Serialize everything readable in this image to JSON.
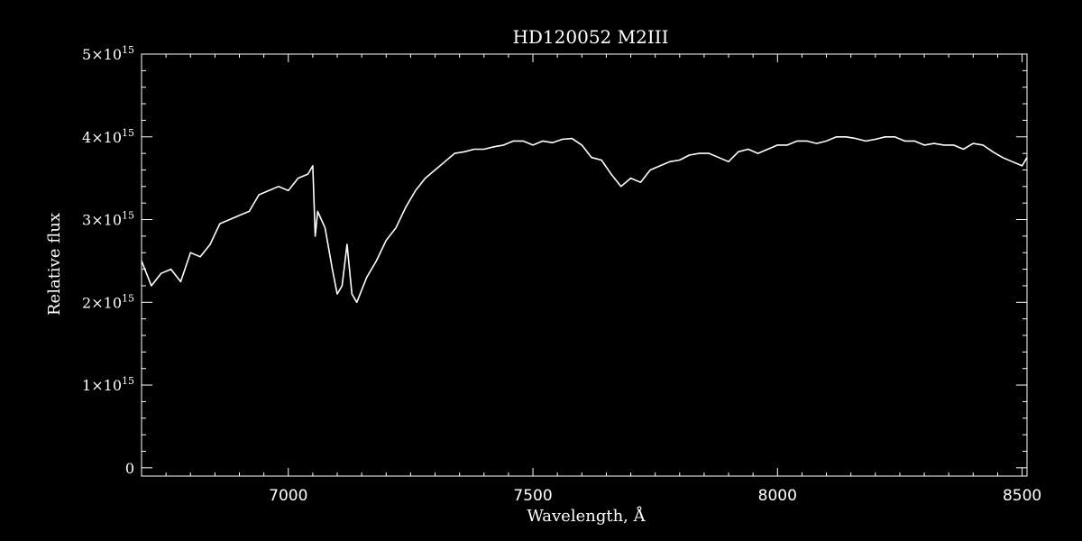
{
  "chart_data": {
    "type": "line",
    "title": "HD120052   M2III",
    "xlabel": "Wavelength, Å",
    "ylabel": "Relative flux",
    "xlim": [
      6700,
      8510
    ],
    "ylim": [
      -100000000000000.0,
      5000000000000000.0
    ],
    "xticks": [
      7000,
      7500,
      8000,
      8500
    ],
    "xtick_labels": [
      "7000",
      "7500",
      "8000",
      "8500"
    ],
    "yticks": [
      0,
      1000000000000000.0,
      2000000000000000.0,
      3000000000000000.0,
      4000000000000000.0,
      5000000000000000.0
    ],
    "ytick_labels": [
      {
        "mantissa": "0",
        "exponent": ""
      },
      {
        "mantissa": "1×10",
        "exponent": "15"
      },
      {
        "mantissa": "2×10",
        "exponent": "15"
      },
      {
        "mantissa": "3×10",
        "exponent": "15"
      },
      {
        "mantissa": "4×10",
        "exponent": "15"
      },
      {
        "mantissa": "5×10",
        "exponent": "15"
      }
    ],
    "grid": false,
    "colors": {
      "background": "#000000",
      "foreground": "#ffffff"
    },
    "series": [
      {
        "x": [
          6700,
          6720,
          6740,
          6760,
          6780,
          6800,
          6820,
          6840,
          6860,
          6880,
          6900,
          6920,
          6940,
          6960,
          6980,
          7000,
          7020,
          7040,
          7050,
          7055,
          7060,
          7075,
          7090,
          7100,
          7110,
          7120,
          7130,
          7140,
          7160,
          7180,
          7200,
          7220,
          7240,
          7260,
          7280,
          7300,
          7320,
          7340,
          7360,
          7380,
          7400,
          7420,
          7440,
          7460,
          7480,
          7500,
          7520,
          7540,
          7560,
          7580,
          7600,
          7620,
          7640,
          7660,
          7680,
          7700,
          7720,
          7740,
          7760,
          7780,
          7800,
          7820,
          7840,
          7860,
          7880,
          7900,
          7920,
          7940,
          7960,
          7980,
          8000,
          8020,
          8040,
          8060,
          8080,
          8100,
          8120,
          8140,
          8160,
          8180,
          8200,
          8220,
          8240,
          8260,
          8280,
          8300,
          8320,
          8340,
          8360,
          8380,
          8400,
          8420,
          8440,
          8460,
          8480,
          8500,
          8510
        ],
        "y": [
          2500000000000000.0,
          2200000000000000.0,
          2350000000000000.0,
          2400000000000000.0,
          2250000000000000.0,
          2600000000000000.0,
          2550000000000000.0,
          2700000000000000.0,
          2950000000000000.0,
          3000000000000000.0,
          3050000000000000.0,
          3100000000000000.0,
          3300000000000000.0,
          3350000000000000.0,
          3400000000000000.0,
          3350000000000000.0,
          3500000000000000.0,
          3550000000000000.0,
          3650000000000000.0,
          2800000000000000.0,
          3100000000000000.0,
          2900000000000000.0,
          2400000000000000.0,
          2100000000000000.0,
          2200000000000000.0,
          2700000000000000.0,
          2100000000000000.0,
          2000000000000000.0,
          2300000000000000.0,
          2500000000000000.0,
          2750000000000000.0,
          2900000000000000.0,
          3150000000000000.0,
          3350000000000000.0,
          3500000000000000.0,
          3600000000000000.0,
          3700000000000000.0,
          3800000000000000.0,
          3820000000000000.0,
          3850000000000000.0,
          3850000000000000.0,
          3880000000000000.0,
          3900000000000000.0,
          3950000000000000.0,
          3950000000000000.0,
          3900000000000000.0,
          3950000000000000.0,
          3930000000000000.0,
          3970000000000000.0,
          3980000000000000.0,
          3900000000000000.0,
          3750000000000000.0,
          3720000000000000.0,
          3550000000000000.0,
          3400000000000000.0,
          3500000000000000.0,
          3450000000000000.0,
          3600000000000000.0,
          3650000000000000.0,
          3700000000000000.0,
          3720000000000000.0,
          3780000000000000.0,
          3800000000000000.0,
          3800000000000000.0,
          3750000000000000.0,
          3700000000000000.0,
          3820000000000000.0,
          3850000000000000.0,
          3800000000000000.0,
          3850000000000000.0,
          3900000000000000.0,
          3900000000000000.0,
          3950000000000000.0,
          3950000000000000.0,
          3920000000000000.0,
          3950000000000000.0,
          4000000000000000.0,
          4000000000000000.0,
          3980000000000000.0,
          3950000000000000.0,
          3970000000000000.0,
          4000000000000000.0,
          4000000000000000.0,
          3950000000000000.0,
          3950000000000000.0,
          3900000000000000.0,
          3920000000000000.0,
          3900000000000000.0,
          3900000000000000.0,
          3850000000000000.0,
          3920000000000000.0,
          3900000000000000.0,
          3820000000000000.0,
          3750000000000000.0,
          3700000000000000.0,
          3650000000000000.0,
          3750000000000000.0
        ]
      }
    ]
  }
}
